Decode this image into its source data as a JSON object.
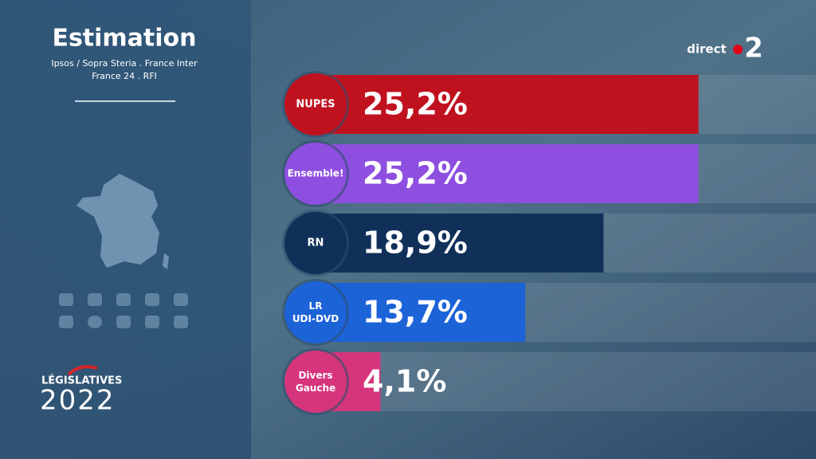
{
  "chart_data": {
    "type": "bar",
    "orientation": "horizontal",
    "title": "Estimation",
    "subtitle": [
      "Ipsos / Sopra Steria . France Inter",
      "France 24 . RFI"
    ],
    "categories": [
      "NUPES",
      "Ensemble!",
      "RN",
      "LR UDI-DVD",
      "Divers Gauche"
    ],
    "values": [
      25.2,
      25.2,
      18.9,
      13.7,
      4.1
    ],
    "value_labels": [
      "25,2%",
      "25,2%",
      "18,9%",
      "13,7%",
      "4,1%"
    ],
    "colors": [
      "#c0111f",
      "#8e4fe0",
      "#10305a",
      "#1c63d8",
      "#d6357c"
    ],
    "xlim": [
      0,
      33
    ]
  },
  "branding": {
    "channel_prefix": "direct",
    "channel_number": "2",
    "election": "LÉGISLATIVES",
    "year": "2022"
  }
}
